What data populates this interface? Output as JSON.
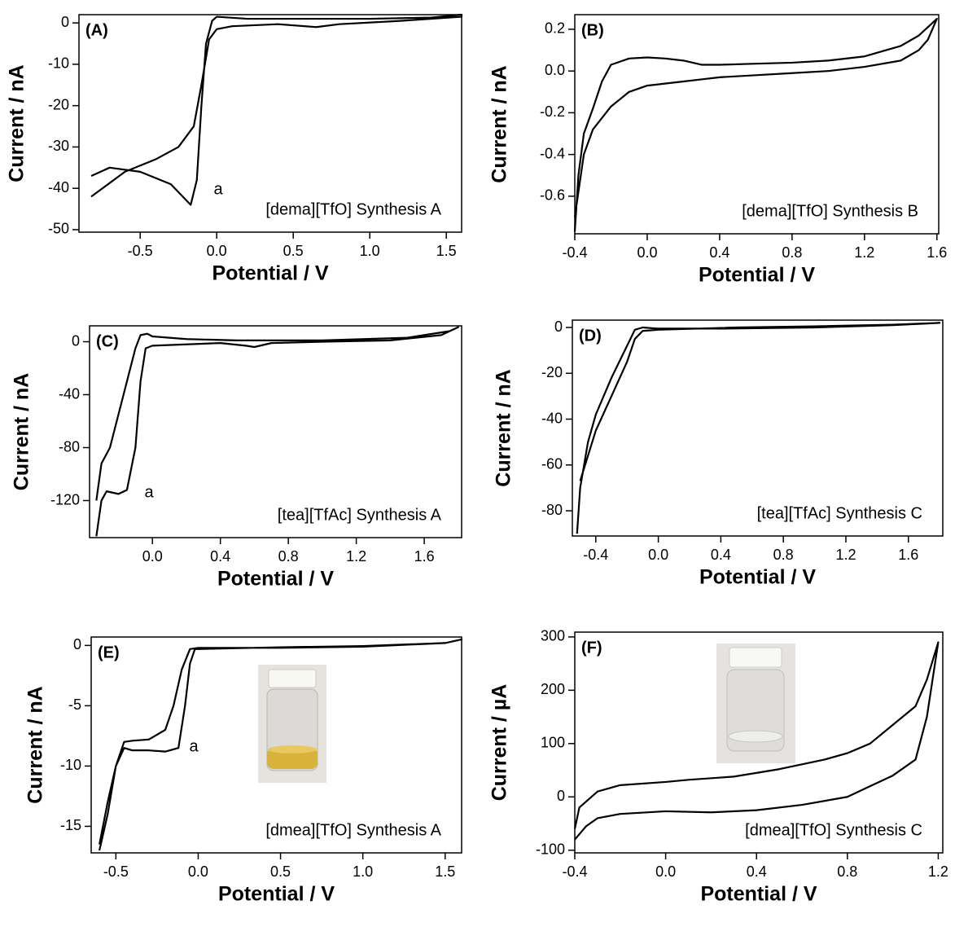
{
  "chart_data": [
    {
      "type": "line",
      "panel_label": "(A)",
      "note": "a",
      "sample_label": "[dema][TfO] Synthesis A",
      "x_label": "Potential / V",
      "y_label": "Current / nA",
      "xlim": [
        -0.9,
        1.6
      ],
      "ylim": [
        -50.6,
        2
      ],
      "xticks": [
        -0.5,
        {
          "value": 0,
          "label": "0.0"
        },
        0.5,
        {
          "value": 1,
          "label": "1.0"
        },
        1.5
      ],
      "yticks": [
        0,
        -10,
        -20,
        -30,
        -40,
        -50
      ],
      "series": [
        {
          "color": "#000000",
          "x": [
            -0.82,
            -0.7,
            -0.5,
            -0.3,
            -0.17,
            -0.13,
            -0.1,
            -0.07,
            -0.03,
            0,
            0.2,
            0.6,
            1.0,
            1.4,
            1.6,
            1.6,
            1.2,
            0.8,
            0.65,
            0.4,
            0.1,
            0,
            -0.05,
            -0.1,
            -0.15,
            -0.25,
            -0.4,
            -0.6,
            -0.82
          ],
          "values": [
            -37,
            -35,
            -36,
            -39,
            -44,
            -38,
            -20,
            -5,
            0.5,
            1.5,
            1,
            1,
            1,
            1.3,
            2,
            1.5,
            0.5,
            -0.3,
            -1,
            -0.3,
            -0.8,
            -1.5,
            -4,
            -15,
            -25,
            -30,
            -33,
            -36,
            -42
          ]
        }
      ]
    },
    {
      "type": "line",
      "panel_label": "(B)",
      "sample_label": "[dema][TfO] Synthesis B",
      "x_label": "Potential / V",
      "y_label": "Current / nA",
      "xlim": [
        -0.4,
        1.61
      ],
      "ylim": [
        -0.78,
        0.27
      ],
      "xticks": [
        -0.4,
        {
          "value": 0,
          "label": "0.0"
        },
        0.4,
        0.8,
        1.2,
        1.6
      ],
      "yticks": [
        0.2,
        {
          "value": 0,
          "label": "0.0"
        },
        -0.2,
        -0.4,
        -0.6
      ],
      "series": [
        {
          "color": "#000000",
          "x": [
            -0.4,
            -0.38,
            -0.35,
            -0.3,
            -0.25,
            -0.2,
            -0.1,
            0,
            0.1,
            0.2,
            0.3,
            0.4,
            0.6,
            0.8,
            1.0,
            1.2,
            1.4,
            1.5,
            1.6,
            1.55,
            1.5,
            1.4,
            1.2,
            1.0,
            0.8,
            0.6,
            0.4,
            0.3,
            0.2,
            0,
            -0.1,
            -0.2,
            -0.3,
            -0.35,
            -0.4
          ],
          "values": [
            -0.77,
            -0.5,
            -0.3,
            -0.18,
            -0.05,
            0.03,
            0.06,
            0.065,
            0.06,
            0.05,
            0.03,
            0.03,
            0.035,
            0.04,
            0.05,
            0.07,
            0.12,
            0.17,
            0.25,
            0.15,
            0.1,
            0.05,
            0.02,
            0,
            -0.01,
            -0.02,
            -0.03,
            -0.04,
            -0.05,
            -0.07,
            -0.1,
            -0.17,
            -0.28,
            -0.4,
            -0.7
          ]
        }
      ]
    },
    {
      "type": "line",
      "panel_label": "(C)",
      "note": "a",
      "sample_label": "[tea][TfAc] Synthesis A",
      "x_label": "Potential / V",
      "y_label": "Current / nA",
      "xlim": [
        -0.37,
        1.82
      ],
      "ylim": [
        -148,
        12
      ],
      "xticks": [
        {
          "value": 0,
          "label": "0.0"
        },
        0.4,
        0.8,
        1.2,
        1.6
      ],
      "yticks": [
        0,
        -40,
        -80,
        -120
      ],
      "series": [
        {
          "color": "#000000",
          "x": [
            -0.33,
            -0.3,
            -0.27,
            -0.2,
            -0.15,
            -0.1,
            -0.07,
            -0.04,
            0,
            0.4,
            0.55,
            0.6,
            0.7,
            1.0,
            1.4,
            1.7,
            1.8,
            1.75,
            1.5,
            1.0,
            0.5,
            0.2,
            0,
            -0.03,
            -0.07,
            -0.1,
            -0.15,
            -0.2,
            -0.25,
            -0.3,
            -0.33
          ],
          "values": [
            -147,
            -120,
            -113,
            -115,
            -112,
            -80,
            -30,
            -5,
            -3,
            -1,
            -3,
            -4,
            -1,
            0,
            1,
            5,
            11,
            8,
            3,
            1,
            1,
            2,
            4,
            6,
            5,
            -5,
            -30,
            -55,
            -80,
            -92,
            -120
          ]
        }
      ]
    },
    {
      "type": "line",
      "panel_label": "(D)",
      "sample_label": "[tea][TfAc] Synthesis C",
      "x_label": "Potential / V",
      "y_label": "Current / nA",
      "xlim": [
        -0.55,
        1.82
      ],
      "ylim": [
        -91,
        3.2
      ],
      "xticks": [
        -0.4,
        {
          "value": 0,
          "label": "0.0"
        },
        0.4,
        0.8,
        1.2,
        1.6
      ],
      "yticks": [
        0,
        -20,
        -40,
        -60,
        -80
      ],
      "series": [
        {
          "color": "#000000",
          "x": [
            -0.52,
            -0.5,
            -0.45,
            -0.4,
            -0.3,
            -0.2,
            -0.15,
            -0.1,
            0,
            0.4,
            1.0,
            1.5,
            1.8,
            1.5,
            1.0,
            0.5,
            0,
            -0.1,
            -0.15,
            -0.2,
            -0.3,
            -0.4,
            -0.5
          ],
          "values": [
            -90,
            -70,
            -50,
            -38,
            -22,
            -8,
            -1,
            0,
            -0.5,
            -0.5,
            0,
            1,
            2,
            1.2,
            0.5,
            0,
            -1,
            -1.5,
            -5,
            -15,
            -30,
            -45,
            -67
          ]
        }
      ]
    },
    {
      "type": "line",
      "panel_label": "(E)",
      "note": "a",
      "sample_label": "[dmea][TfO] Synthesis A",
      "x_label": "Potential / V",
      "y_label": "Current / nA",
      "xlim": [
        -0.65,
        1.6
      ],
      "ylim": [
        -17.2,
        0.7
      ],
      "xticks": [
        -0.5,
        {
          "value": 0,
          "label": "0.0"
        },
        0.5,
        {
          "value": 1,
          "label": "1.0"
        },
        1.5
      ],
      "yticks": [
        0,
        -5,
        -10,
        -15
      ],
      "series": [
        {
          "color": "#000000",
          "x": [
            -0.6,
            -0.55,
            -0.5,
            -0.45,
            -0.4,
            -0.3,
            -0.2,
            -0.12,
            -0.08,
            -0.05,
            -0.02,
            0,
            0.5,
            1.0,
            1.5,
            1.6,
            1.5,
            1.0,
            0.5,
            0,
            -0.05,
            -0.1,
            -0.15,
            -0.2,
            -0.3,
            -0.4,
            -0.45,
            -0.5,
            -0.55,
            -0.6
          ],
          "values": [
            -17,
            -14,
            -10,
            -8.5,
            -8.7,
            -8.7,
            -8.8,
            -8.5,
            -5,
            -1.5,
            -0.3,
            -0.3,
            -0.15,
            -0.05,
            0.2,
            0.5,
            0.2,
            -0.1,
            -0.2,
            -0.2,
            -0.3,
            -2,
            -5,
            -7,
            -7.8,
            -7.9,
            -8,
            -10,
            -13,
            -16.5
          ]
        }
      ]
    },
    {
      "type": "line",
      "panel_label": "(F)",
      "sample_label": "[dmea][TfO] Synthesis C",
      "x_label": "Potential / V",
      "y_label": "Current / µA",
      "xlim": [
        -0.4,
        1.22
      ],
      "ylim": [
        -105,
        309
      ],
      "xticks": [
        -0.4,
        {
          "value": 0,
          "label": "0.0"
        },
        0.4,
        0.8,
        1.2
      ],
      "yticks": [
        300,
        200,
        100,
        0,
        -100
      ],
      "series": [
        {
          "color": "#000000",
          "x": [
            -0.4,
            -0.35,
            -0.3,
            -0.2,
            0,
            0.2,
            0.4,
            0.6,
            0.8,
            0.9,
            1.0,
            1.1,
            1.15,
            1.2,
            1.15,
            1.1,
            1.0,
            0.9,
            0.8,
            0.7,
            0.5,
            0.3,
            0.1,
            0,
            -0.2,
            -0.3,
            -0.38,
            -0.4
          ],
          "values": [
            -80,
            -55,
            -40,
            -32,
            -27,
            -29,
            -25,
            -15,
            0,
            20,
            40,
            70,
            150,
            290,
            220,
            170,
            135,
            100,
            82,
            70,
            52,
            38,
            32,
            28,
            22,
            10,
            -20,
            -60
          ]
        }
      ]
    }
  ]
}
